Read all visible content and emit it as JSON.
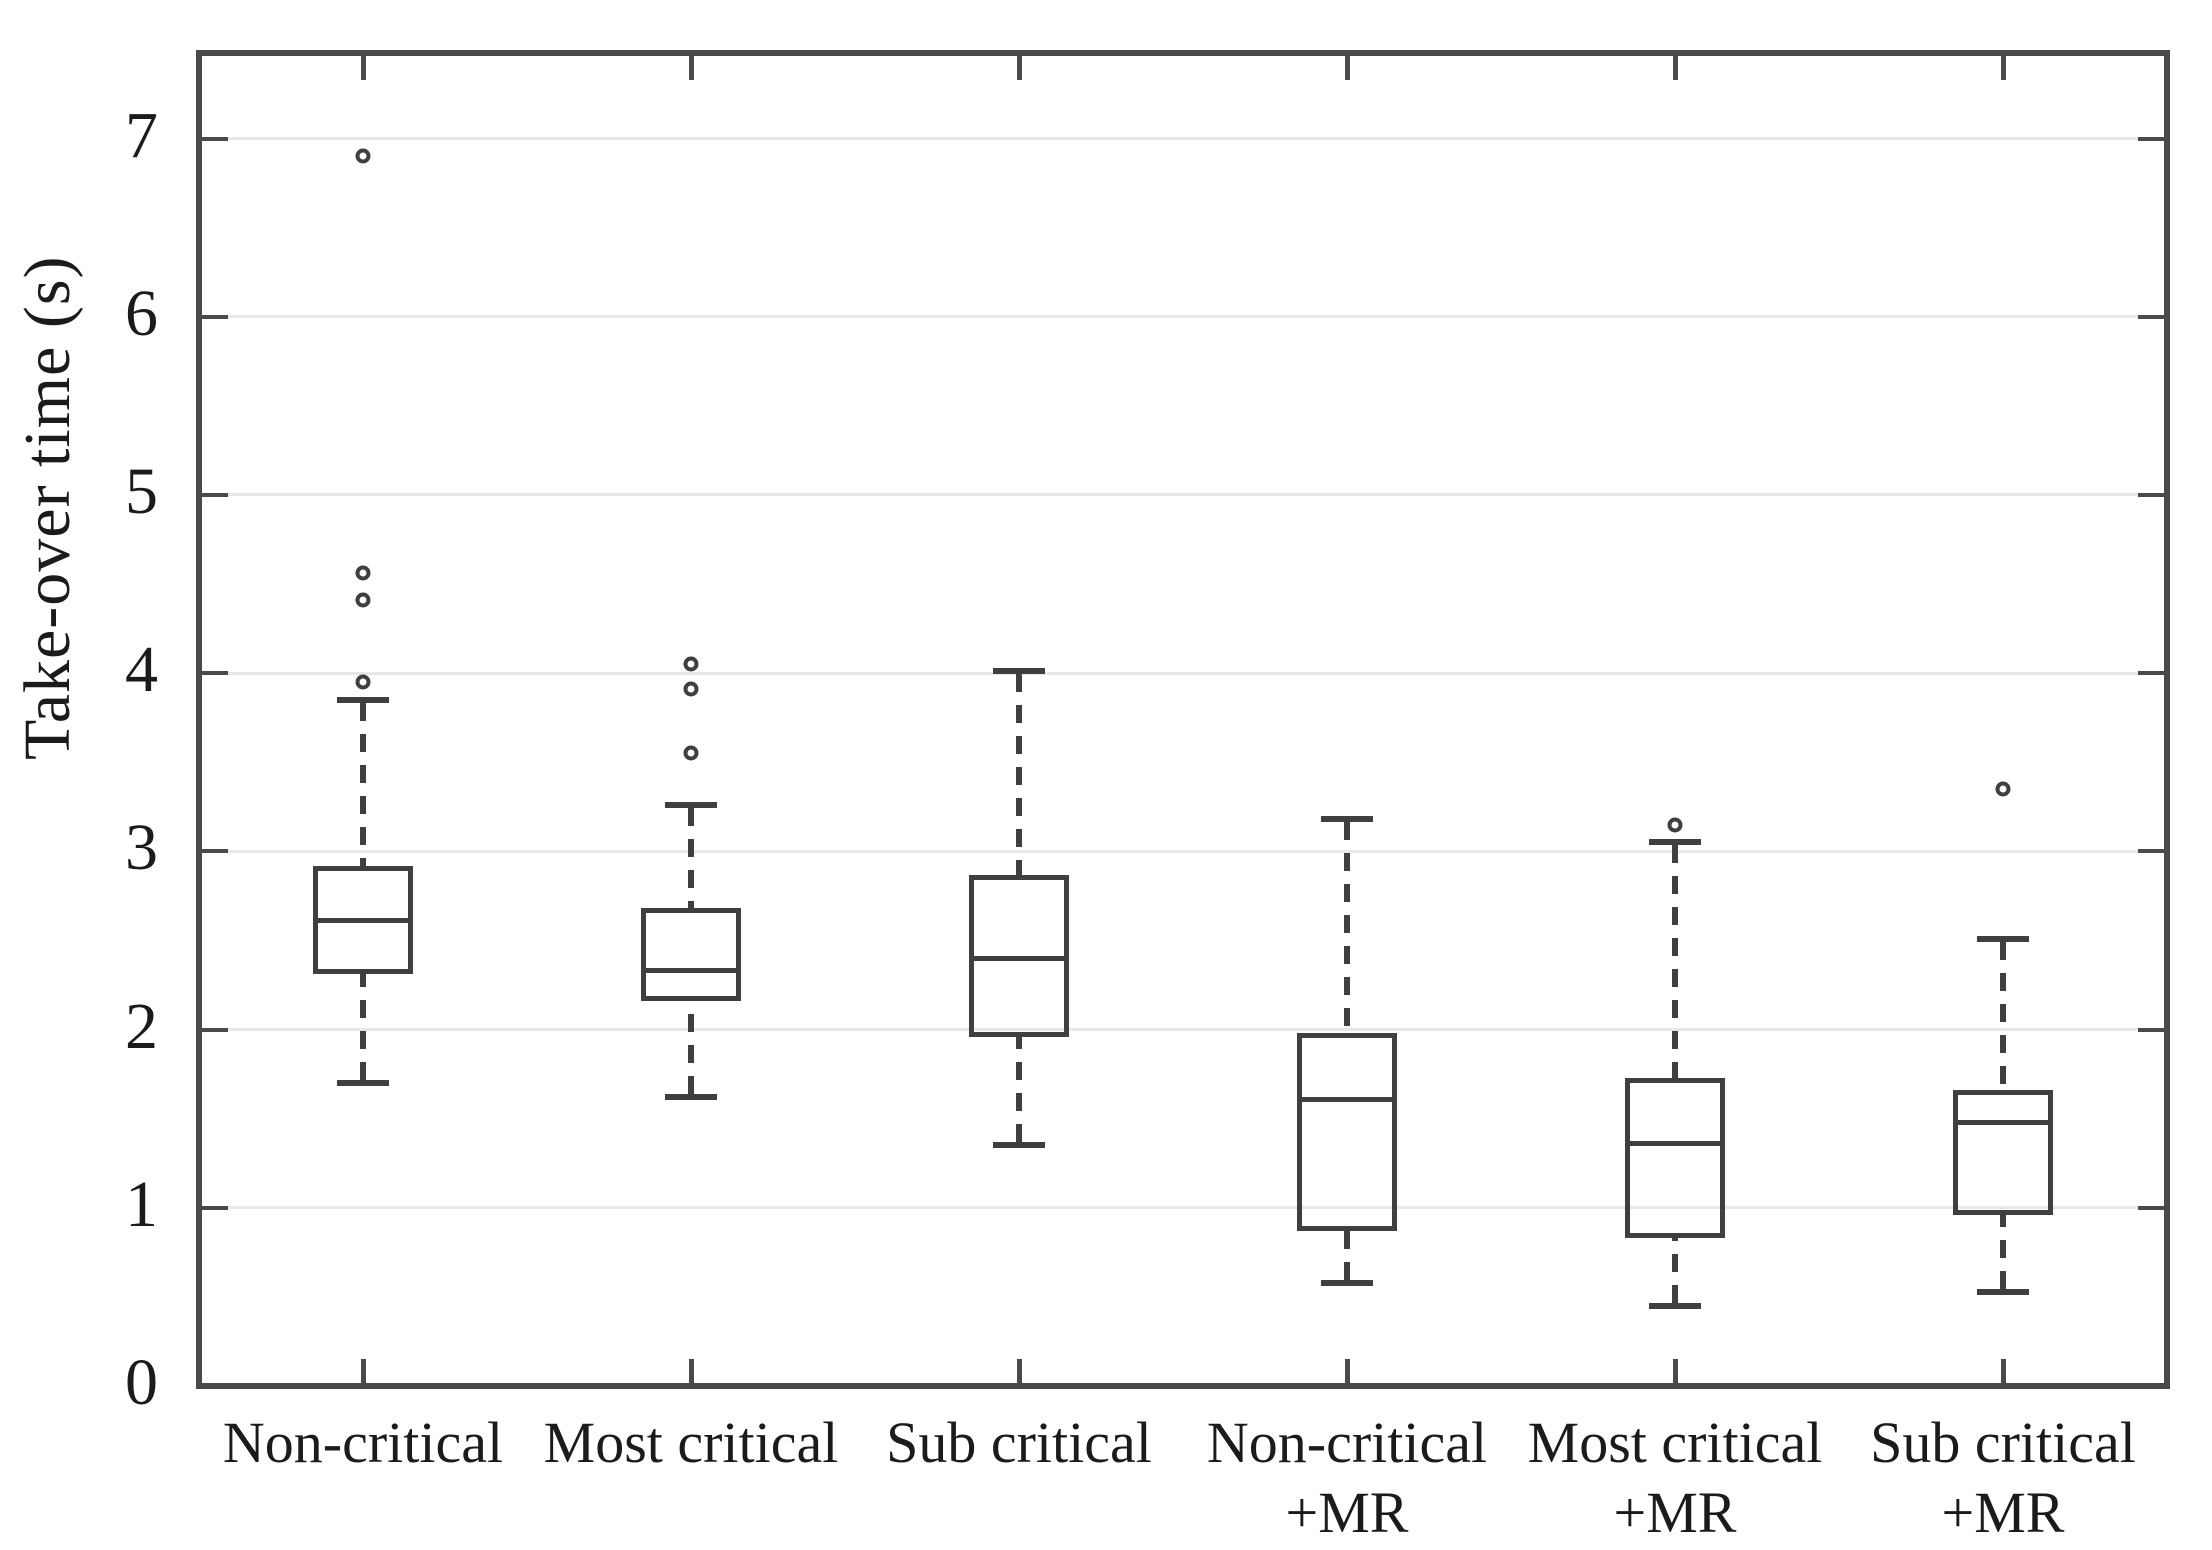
{
  "figure": {
    "background_color": "#ffffff",
    "frame_color": "#4a4a4a",
    "grid_color": "#e8e8e8",
    "box_color": "#3f3f3f",
    "text_color": "#1b1b1b"
  },
  "chart_data": {
    "type": "box",
    "title": "",
    "xlabel": "",
    "ylabel": "Take-over time (s)",
    "ylim": [
      0,
      7.48
    ],
    "yticks": [
      0,
      1,
      2,
      3,
      4,
      5,
      6,
      7
    ],
    "grid": "horizontal",
    "legend": "none",
    "categories": [
      {
        "label": "Non-critical",
        "sublabel": ""
      },
      {
        "label": "Most critical",
        "sublabel": ""
      },
      {
        "label": "Sub critical",
        "sublabel": ""
      },
      {
        "label": "Non-critical",
        "sublabel": "+MR"
      },
      {
        "label": "Most critical",
        "sublabel": "+MR"
      },
      {
        "label": "Sub critical",
        "sublabel": "+MR"
      }
    ],
    "series": [
      {
        "name": "Non-critical",
        "whisker_low": 1.7,
        "q1": 2.31,
        "median": 2.61,
        "q3": 2.92,
        "whisker_high": 3.85,
        "outliers": [
          3.95,
          4.41,
          4.56,
          6.9
        ]
      },
      {
        "name": "Most critical",
        "whisker_low": 1.62,
        "q1": 2.16,
        "median": 2.33,
        "q3": 2.68,
        "whisker_high": 3.26,
        "outliers": [
          3.55,
          3.91,
          4.05
        ]
      },
      {
        "name": "Sub critical",
        "whisker_low": 1.35,
        "q1": 1.96,
        "median": 2.4,
        "q3": 2.87,
        "whisker_high": 4.01,
        "outliers": []
      },
      {
        "name": "Non-critical +MR",
        "whisker_low": 0.58,
        "q1": 0.87,
        "median": 1.61,
        "q3": 1.98,
        "whisker_high": 3.18,
        "outliers": []
      },
      {
        "name": "Most critical +MR",
        "whisker_low": 0.45,
        "q1": 0.83,
        "median": 1.36,
        "q3": 1.73,
        "whisker_high": 3.05,
        "outliers": [
          3.15
        ]
      },
      {
        "name": "Sub critical +MR",
        "whisker_low": 0.53,
        "q1": 0.96,
        "median": 1.48,
        "q3": 1.66,
        "whisker_high": 2.51,
        "outliers": [
          3.35
        ]
      }
    ]
  }
}
